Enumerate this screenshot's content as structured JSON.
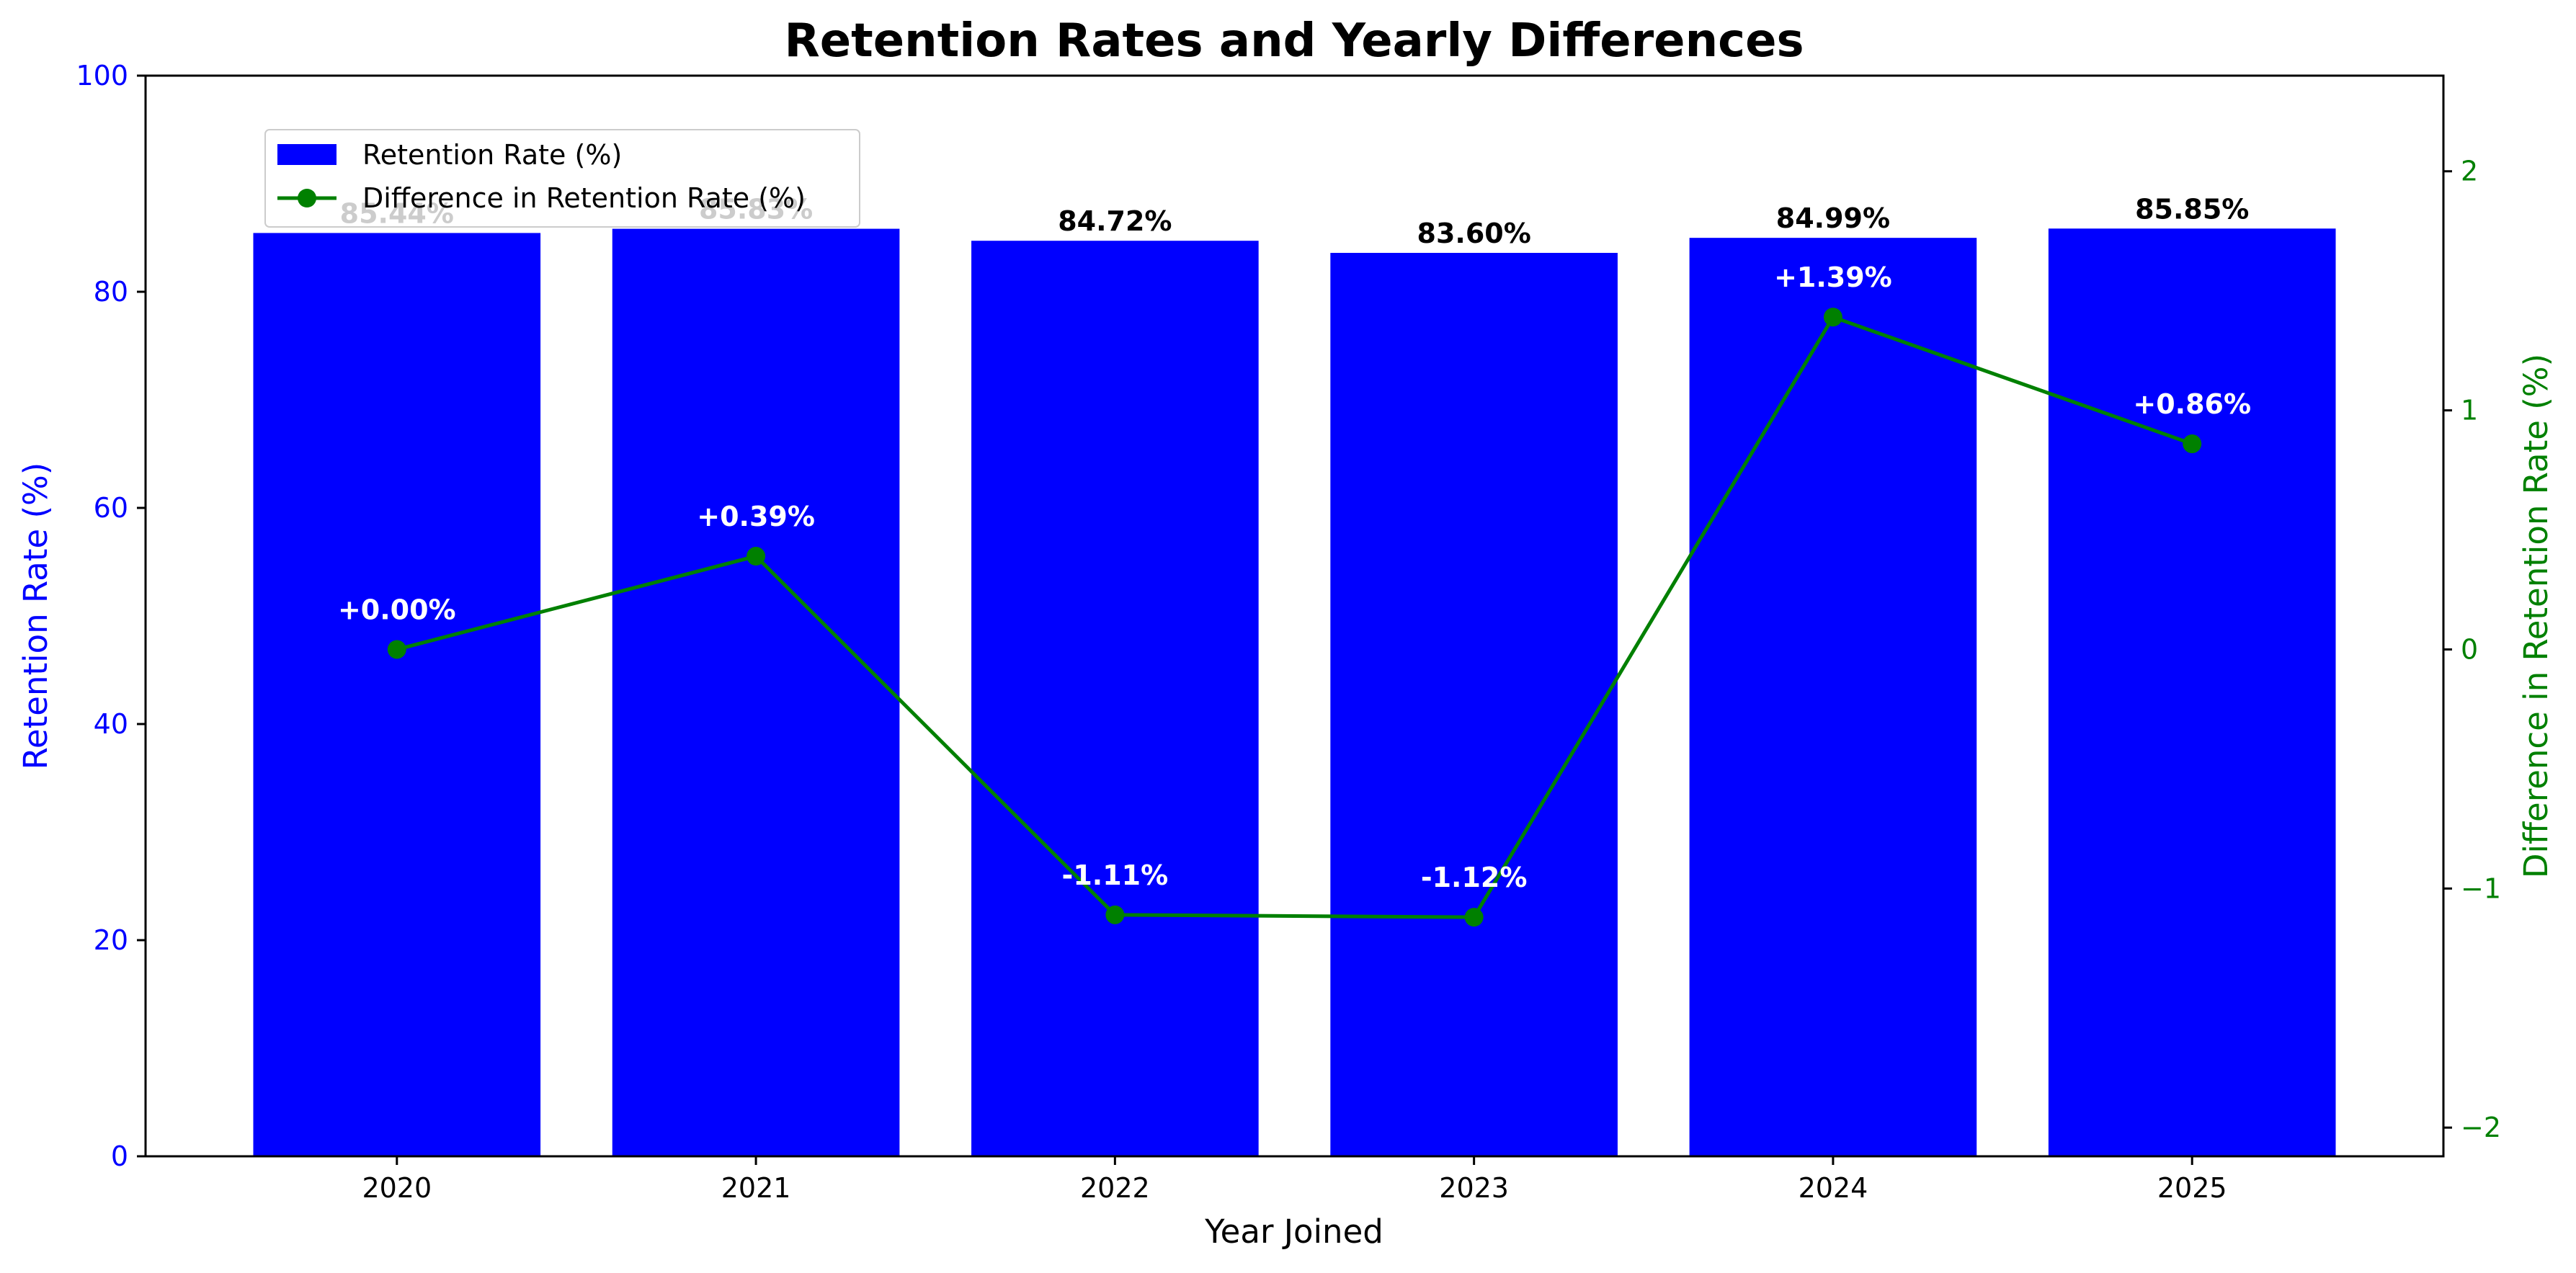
{
  "chart_data": {
    "type": "bar",
    "title": "Retention Rates and Yearly Differences",
    "xlabel": "Year Joined",
    "ylabel": "Retention Rate (%)",
    "y2label": "Difference in Retention Rate (%)",
    "categories": [
      "2020",
      "2021",
      "2022",
      "2023",
      "2024",
      "2025"
    ],
    "ylim": [
      0,
      100
    ],
    "y2lim": [
      -2.12,
      2.4
    ],
    "yticks": [
      0,
      20,
      40,
      60,
      80,
      100
    ],
    "y2ticks": [
      -2,
      -1,
      0,
      1,
      2
    ],
    "legend_position": "upper-left",
    "grid": false,
    "series": [
      {
        "name": "Retention Rate (%)",
        "type": "bar",
        "axis": "left",
        "color": "#0000ff",
        "values": [
          85.44,
          85.83,
          84.72,
          83.6,
          84.99,
          85.85
        ],
        "labels": [
          "85.44%",
          "85.83%",
          "84.72%",
          "83.60%",
          "84.99%",
          "85.85%"
        ]
      },
      {
        "name": "Difference in Retention Rate (%)",
        "type": "line",
        "axis": "right",
        "color": "#008000",
        "values": [
          0.0,
          0.39,
          -1.11,
          -1.12,
          1.39,
          0.86
        ],
        "labels": [
          "+0.00%",
          "+0.39%",
          "-1.11%",
          "-1.12%",
          "+1.39%",
          "+0.86%"
        ]
      }
    ],
    "colors": {
      "left_axis": "#0000ff",
      "right_axis": "#008000",
      "obscured_label": "#c0c0c0"
    }
  }
}
